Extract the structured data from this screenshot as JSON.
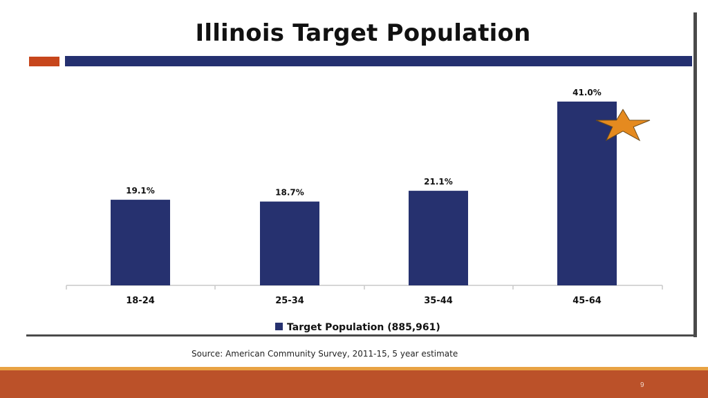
{
  "slide": {
    "title": "Illinois Target Population",
    "source": "Source: American Community Survey, 2011-15, 5 year estimate",
    "page_number": "9"
  },
  "colors": {
    "bar": "#26316f",
    "accent": "#c7461c",
    "star": "#e58a1f",
    "footer": "#bb5129"
  },
  "chart_data": {
    "type": "bar",
    "categories": [
      "18-24",
      "25-34",
      "35-44",
      "45-64"
    ],
    "series": [
      {
        "name": "Target Population (885,961)",
        "values": [
          19.1,
          18.7,
          21.1,
          41.0
        ]
      }
    ],
    "data_labels": [
      "19.1%",
      "18.7%",
      "21.1%",
      "41.0%"
    ],
    "legend": {
      "label": "Target Population (885,961)",
      "position": "bottom"
    },
    "annotations": [
      {
        "type": "star-icon",
        "category": "45-64"
      }
    ],
    "ylim": [
      0,
      41.0
    ],
    "grid": false
  }
}
